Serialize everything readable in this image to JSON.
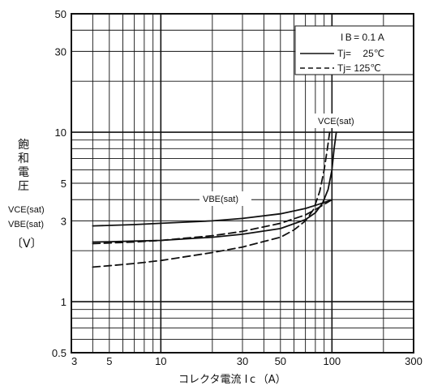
{
  "chart_data": {
    "type": "line",
    "scale": {
      "x": "log",
      "y": "log"
    },
    "xlim": [
      3,
      300
    ],
    "ylim": [
      0.5,
      50
    ],
    "grid": true,
    "legend_position": "top-right",
    "x_ticks": [
      "3",
      "5",
      "10",
      "30",
      "50",
      "100",
      "300"
    ],
    "y_ticks": [
      "0.5",
      "1",
      "3",
      "5",
      "10",
      "30",
      "50"
    ],
    "xlabel": "コレクタ電流 I c （A）",
    "ylabel_chars": [
      "飽",
      "和",
      "電",
      "圧"
    ],
    "ylabel_sym1": "VCE(sat)",
    "ylabel_sym2": "VBE(sat)",
    "ylabel_unit": "〔V〕",
    "legend": {
      "condition": "I B = 0.1 A",
      "entries": [
        "Tj=  25℃",
        "Tj= 125℃"
      ]
    },
    "annotations": [
      "VCE(sat)",
      "VBE(sat)"
    ],
    "series": [
      {
        "group": "VBE(sat)",
        "style": "solid",
        "x": [
          4,
          5,
          7,
          10,
          20,
          30,
          50,
          70,
          80,
          90,
          100
        ],
        "y": [
          2.8,
          2.82,
          2.85,
          2.9,
          3.0,
          3.1,
          3.3,
          3.55,
          3.7,
          3.85,
          4.0
        ]
      },
      {
        "group": "VBE(sat)",
        "style": "dashed",
        "x": [
          4,
          5,
          7,
          10,
          20,
          30,
          50,
          70,
          80,
          90,
          100
        ],
        "y": [
          2.2,
          2.22,
          2.25,
          2.3,
          2.45,
          2.6,
          2.9,
          3.25,
          3.5,
          3.75,
          4.0
        ]
      },
      {
        "group": "VCE(sat)",
        "style": "solid",
        "x": [
          4,
          5,
          7,
          10,
          20,
          30,
          50,
          70,
          80,
          88,
          95,
          100,
          103,
          106
        ],
        "y": [
          2.25,
          2.26,
          2.28,
          2.3,
          2.4,
          2.5,
          2.7,
          3.05,
          3.35,
          3.8,
          4.6,
          6.0,
          8.0,
          10.0
        ]
      },
      {
        "group": "VCE(sat)",
        "style": "dashed",
        "x": [
          4,
          5,
          7,
          10,
          20,
          30,
          50,
          60,
          70,
          78,
          85,
          90,
          94,
          97
        ],
        "y": [
          1.6,
          1.63,
          1.68,
          1.75,
          1.95,
          2.1,
          2.4,
          2.65,
          3.0,
          3.5,
          4.5,
          6.0,
          8.0,
          10.0
        ]
      }
    ]
  }
}
